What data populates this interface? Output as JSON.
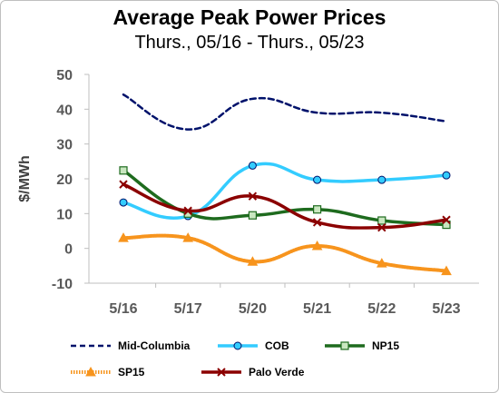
{
  "chart_data": {
    "type": "line",
    "title": "Average Peak Power Prices",
    "subtitle": "Thurs., 05/16 - Thurs., 05/23",
    "xlabel": "",
    "ylabel": "$/MWh",
    "ylim": [
      -10,
      50
    ],
    "yticks": [
      -10,
      0,
      10,
      20,
      30,
      40,
      50
    ],
    "grid": false,
    "legend_position": "bottom",
    "categories": [
      "5/16",
      "5/17",
      "5/20",
      "5/21",
      "5/22",
      "5/23"
    ],
    "series": [
      {
        "name": "Mid-Columbia",
        "values": [
          44.2,
          34.2,
          43.0,
          39.0,
          39.0,
          36.5
        ],
        "color": "#00126b",
        "style": "dashed",
        "marker": "none"
      },
      {
        "name": "COB",
        "values": [
          13.2,
          9.3,
          23.8,
          19.7,
          19.7,
          21.0
        ],
        "color": "#33ccff",
        "style": "solid",
        "marker": "circle"
      },
      {
        "name": "NP15",
        "values": [
          22.4,
          10.0,
          9.5,
          11.2,
          8.0,
          6.8
        ],
        "color": "#1e6b1e",
        "style": "solid",
        "marker": "square"
      },
      {
        "name": "SP15",
        "values": [
          3.0,
          3.0,
          -3.8,
          0.7,
          -4.3,
          -6.5
        ],
        "color": "#f7941d",
        "style": "dotted",
        "marker": "triangle"
      },
      {
        "name": "Palo Verde",
        "values": [
          18.4,
          10.8,
          15.0,
          7.5,
          6.0,
          8.2
        ],
        "color": "#8b0000",
        "style": "solid",
        "marker": "x"
      }
    ]
  }
}
